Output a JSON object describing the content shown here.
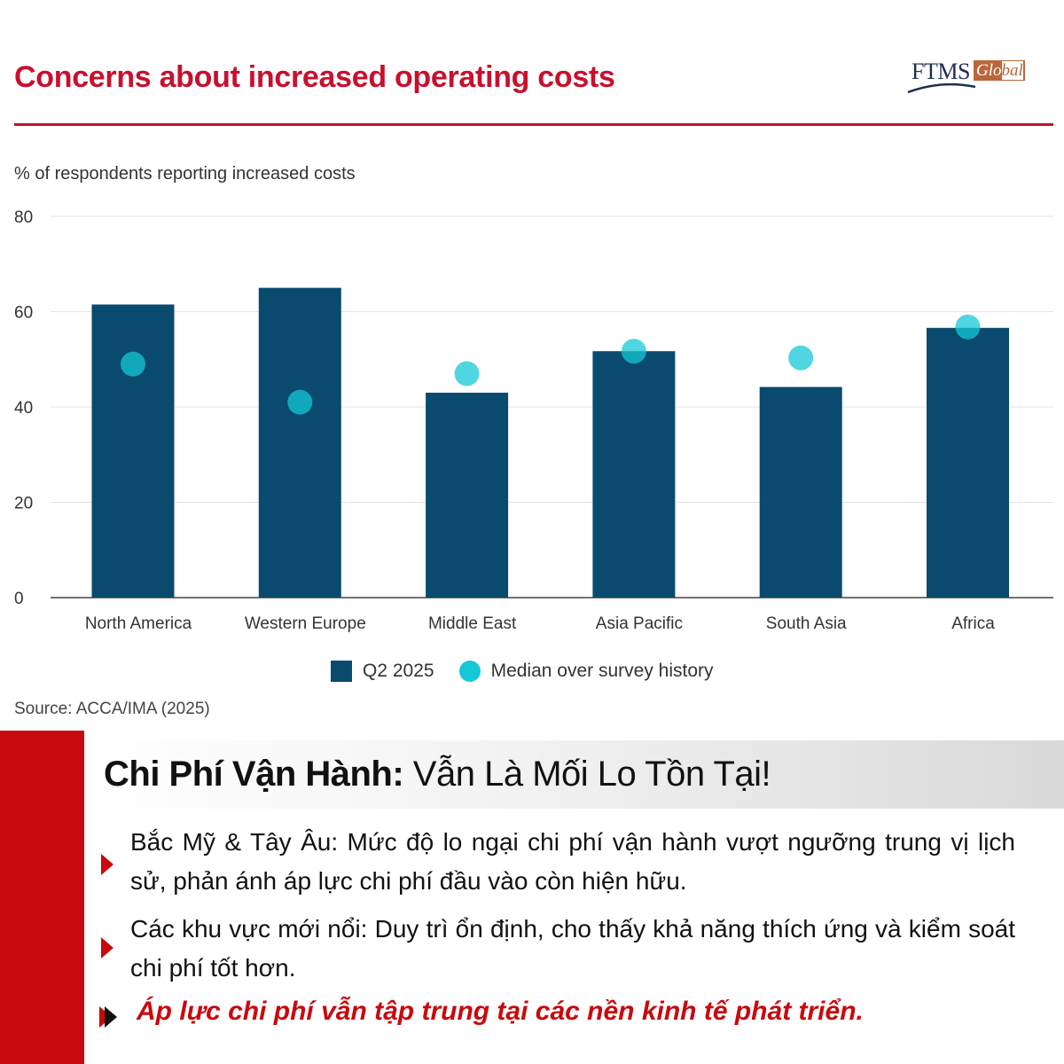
{
  "header": {
    "title": "Concerns about increased operating costs",
    "logo_ftms": "FTMS",
    "logo_global_a": "Glo",
    "logo_global_b": "bal"
  },
  "chart_data": {
    "type": "bar",
    "title": "Concerns about increased operating costs",
    "ylabel": "% of respondents reporting increased costs",
    "xlabel": "",
    "categories": [
      "North America",
      "Western Europe",
      "Middle East",
      "Asia Pacific",
      "South Asia",
      "Africa"
    ],
    "ylim": [
      0,
      80
    ],
    "yticks": [
      0,
      20,
      40,
      60,
      80
    ],
    "grid": true,
    "series": [
      {
        "name": "Q2 2025",
        "type": "bar",
        "color": "#0a4a6e",
        "values": [
          61.5,
          65,
          43,
          51.7,
          44.2,
          56.6
        ]
      },
      {
        "name": "Median over survey history",
        "type": "scatter",
        "color": "#16c8d6",
        "values": [
          49,
          41,
          47,
          51.7,
          50.3,
          56.8
        ]
      }
    ],
    "legend": "bottom-center",
    "source": "Source: ACCA/IMA (2025)"
  },
  "summary": {
    "heading_bold": "Chi Phí Vận Hành:",
    "heading_rest": " Vẫn Là Mối Lo Tồn Tại!",
    "bullets": [
      "Bắc Mỹ & Tây Âu: Mức độ lo ngại chi phí vận hành vượt ngưỡng trung vị lịch sử, phản ánh áp lực chi phí đầu vào còn hiện hữu.",
      "Các khu vực mới nổi: Duy trì ổn định, cho thấy khả năng thích ứng và kiểm soát chi phí tốt hơn."
    ],
    "conclusion": "Áp lực chi phí vẫn tập trung tại các nền kinh tế phát triển."
  },
  "colors": {
    "accent": "#c8102e",
    "bar": "#0a4a6e",
    "median": "#16c8d6",
    "side_bar": "#c8090d"
  }
}
